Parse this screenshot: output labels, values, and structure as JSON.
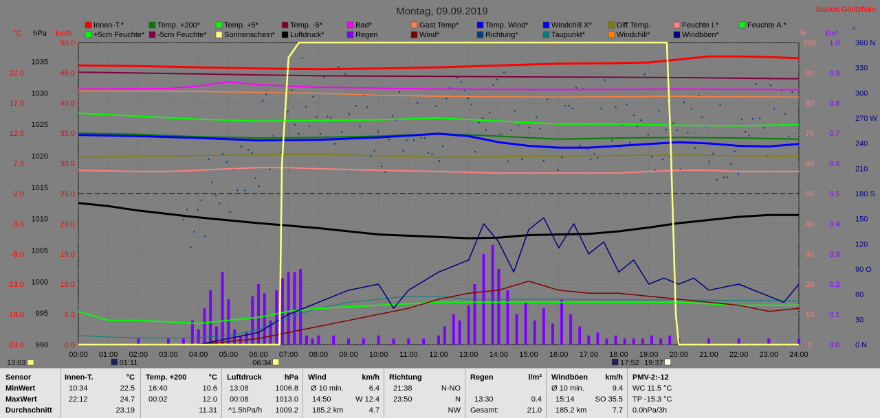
{
  "title": "Montag, 09.09.2019",
  "station": "Station Göritzhain",
  "colors": {
    "background": "#808080",
    "innen_t": "#ff0000",
    "temp_200": "#008000",
    "temp_5": "#00ff00",
    "temp_m5": "#800040",
    "bad": "#ff00ff",
    "gast_temp": "#ff8040",
    "temp_wind": "#0000ff",
    "windchill_x": "#0000ff",
    "diff_temp": "#808000",
    "feuchte_i": "#ff8080",
    "feuchte_a": "#00ff00",
    "feuchte_5cm": "#00ff00",
    "feuchte_m5cm": "#800040",
    "sonnenschein": "#ffff80",
    "luftdruck": "#000000",
    "regen": "#8000ff",
    "wind": "#800000",
    "richtung": "#004080",
    "taupunkt": "#008080",
    "windchill": "#ff8000",
    "windboeen": "#000080"
  },
  "legend": [
    [
      {
        "label": "Innen-T.*",
        "color": "#ff0000"
      },
      {
        "label": "Temp. +200*",
        "color": "#008000"
      },
      {
        "label": "Temp. +5*",
        "color": "#00ff00"
      },
      {
        "label": "Temp. -5*",
        "color": "#800040"
      },
      {
        "label": "Bad*",
        "color": "#ff00ff"
      },
      {
        "label": "Gast Temp*",
        "color": "#ff8040"
      },
      {
        "label": "Temp. Wind*",
        "color": "#0000ff"
      },
      {
        "label": "Windchill X*",
        "color": "#0000ff"
      },
      {
        "label": "Diff Temp.",
        "color": "#808000"
      },
      {
        "label": "Feuchte I.*",
        "color": "#ff8080"
      },
      {
        "label": "Feuchte A.*",
        "color": "#00ff00"
      }
    ],
    [
      {
        "label": "+5cm Feuchte*",
        "color": "#00ff00"
      },
      {
        "label": "-5cm Feuchte*",
        "color": "#800040"
      },
      {
        "label": "Sonnenschein*",
        "color": "#ffff80"
      },
      {
        "label": "Luftdruck*",
        "color": "#000000"
      },
      {
        "label": "Regen",
        "color": "#8000ff"
      },
      {
        "label": "Wind*",
        "color": "#800000"
      },
      {
        "label": "Richtung*",
        "color": "#004080"
      },
      {
        "label": "Taupunkt*",
        "color": "#008080"
      },
      {
        "label": "Windchill*",
        "color": "#ff8000"
      },
      {
        "label": "Windböen*",
        "color": "#000080"
      }
    ]
  ],
  "axis_headers": {
    "celsius": "°C",
    "hpa": "hPa",
    "kmh": "km/h",
    "percent": "%",
    "rain": "l/m²",
    "deg": "°"
  },
  "chart_data": {
    "type": "line",
    "title": "Montag, 09.09.2019",
    "x_ticks": [
      "00:00",
      "01:00",
      "02:00",
      "03:00",
      "04:00",
      "05:00",
      "06:00",
      "07:00",
      "08:00",
      "09:00",
      "10:00",
      "11:00",
      "12:00",
      "13:00",
      "14:00",
      "15:00",
      "16:00",
      "17:00",
      "18:00",
      "19:00",
      "20:00",
      "21:00",
      "22:00",
      "23:00",
      "24:00"
    ],
    "x_range_hours": [
      0,
      24
    ],
    "grid": true,
    "legend_position": "top",
    "axes": {
      "temperature_c": {
        "ticks": [
          "22.0",
          "17.0",
          "12.0",
          "7.0",
          "2.0",
          "-3.0",
          "-8.0",
          "-13.0",
          "-18.0",
          "-23.0"
        ],
        "range": [
          -23,
          27
        ]
      },
      "pressure_hpa": {
        "ticks": [
          "1035",
          "1030",
          "1025",
          "1020",
          "1015",
          "1010",
          "1005",
          "1000",
          "995",
          "990"
        ],
        "range": [
          990,
          1038
        ]
      },
      "wind_kmh": {
        "ticks": [
          "50.0",
          "45.0",
          "40.0",
          "35.0",
          "30.0",
          "25.0",
          "20.0",
          "15.0",
          "10.0",
          "5.0",
          "0.0"
        ],
        "range": [
          0,
          50
        ]
      },
      "humidity_pct": {
        "ticks": [
          "100",
          "90",
          "80",
          "70",
          "60",
          "50",
          "40",
          "30",
          "20",
          "10",
          "0"
        ],
        "range": [
          0,
          100
        ]
      },
      "rain_lm2": {
        "ticks": [
          "1.0",
          "0.9",
          "0.8",
          "0.7",
          "0.6",
          "0.5",
          "0.4",
          "0.3",
          "0.2",
          "0.1",
          "0.0"
        ],
        "range": [
          0,
          1.0
        ]
      },
      "direction_deg": {
        "ticks": [
          "360 N",
          "330",
          "300",
          "270 W",
          "240",
          "210",
          "180 S",
          "150",
          "120",
          "90 O",
          "60",
          "30",
          "0 N"
        ],
        "range": [
          0,
          360
        ]
      }
    },
    "series": [
      {
        "name": "Innen-T.*",
        "axis": "temperature_c",
        "x": [
          0,
          2,
          4,
          6,
          8,
          10,
          12,
          14,
          16,
          18,
          19,
          20,
          21,
          22,
          23,
          24
        ],
        "y": [
          23.2,
          23.1,
          22.9,
          22.7,
          22.6,
          22.7,
          22.9,
          23.2,
          23.5,
          23.6,
          23.7,
          24.2,
          24.7,
          24.7,
          24.6,
          24.4
        ]
      },
      {
        "name": "Temp. +200*",
        "axis": "temperature_c",
        "x": [
          0,
          2,
          4,
          6,
          8,
          10,
          12,
          14,
          16,
          18,
          20,
          22,
          24
        ],
        "y": [
          12.0,
          11.8,
          11.4,
          11.2,
          11.3,
          11.5,
          11.9,
          11.5,
          11.0,
          11.2,
          11.3,
          11.2,
          11.0
        ]
      },
      {
        "name": "Temp. +5*",
        "axis": "temperature_c",
        "x": [
          0,
          2,
          4,
          6,
          8,
          10,
          12,
          14,
          16,
          18,
          20,
          22,
          24
        ],
        "y": [
          15.3,
          14.8,
          14.3,
          14.0,
          14.1,
          14.2,
          14.5,
          14.0,
          13.5,
          13.5,
          13.3,
          13.2,
          13.4
        ]
      },
      {
        "name": "Temp. -5*",
        "axis": "temperature_c",
        "x": [
          0,
          4,
          8,
          12,
          16,
          20,
          24
        ],
        "y": [
          22.1,
          21.8,
          21.5,
          21.4,
          21.3,
          21.2,
          21.0
        ]
      },
      {
        "name": "Bad*",
        "axis": "temperature_c",
        "x": [
          0,
          3,
          4,
          5,
          6,
          8,
          12,
          16,
          20,
          24
        ],
        "y": [
          19.3,
          19.4,
          19.8,
          20.5,
          20.0,
          19.6,
          19.3,
          19.2,
          19.3,
          19.2
        ]
      },
      {
        "name": "Gast Temp*",
        "axis": "temperature_c",
        "x": [
          0,
          4,
          8,
          10,
          12,
          16,
          20,
          24
        ],
        "y": [
          19.0,
          18.9,
          18.6,
          18.3,
          18.1,
          18.0,
          18.1,
          18.0
        ]
      },
      {
        "name": "Temp. Wind*",
        "axis": "temperature_c",
        "x": [
          0,
          2,
          4,
          6,
          8,
          10,
          12,
          13,
          14,
          15,
          16,
          17,
          18,
          19,
          20,
          21,
          22,
          23,
          24
        ],
        "y": [
          11.7,
          11.5,
          11.2,
          10.8,
          10.9,
          11.3,
          11.9,
          11.5,
          10.5,
          9.9,
          9.6,
          9.6,
          9.9,
          10.2,
          10.5,
          10.3,
          9.9,
          9.8,
          10.2
        ]
      },
      {
        "name": "Diff Temp.",
        "axis": "temperature_c",
        "x": [
          0,
          4,
          8,
          12,
          16,
          20,
          24
        ],
        "y": [
          8.0,
          8.3,
          8.5,
          8.0,
          8.2,
          8.4,
          8.1
        ]
      },
      {
        "name": "Feuchte I.*",
        "axis": "humidity_pct",
        "x": [
          0,
          2,
          3,
          4,
          5,
          6,
          7,
          8,
          10,
          12,
          14,
          16,
          18,
          19,
          20,
          21,
          22,
          24
        ],
        "y": [
          57.7,
          57.3,
          57.3,
          57.7,
          58.2,
          58.6,
          58.6,
          58.2,
          57.7,
          57.3,
          56.8,
          56.8,
          56.8,
          57.3,
          57.7,
          57.7,
          57.3,
          57.3
        ]
      },
      {
        "name": "+5cm Feuchte*",
        "axis": "humidity_pct",
        "x": [
          0,
          1,
          2,
          4,
          5,
          6,
          7,
          8,
          10,
          12,
          14,
          16,
          18,
          20,
          22,
          24
        ],
        "y": [
          11,
          8,
          8,
          7,
          8,
          9,
          11,
          12,
          13,
          14,
          14,
          14,
          14,
          14,
          13,
          13
        ]
      },
      {
        "name": "Sonnenschein*",
        "axis": "humidity_pct",
        "x": [
          0,
          6.7,
          6.78,
          7.0,
          7.35,
          14,
          19.6,
          19.72,
          19.9,
          20.0,
          24
        ],
        "y": [
          0,
          0,
          60,
          95,
          100,
          100,
          100,
          70,
          10,
          0,
          0
        ]
      },
      {
        "name": "Luftdruck*",
        "axis": "pressure_hpa",
        "x": [
          0,
          1,
          2,
          4,
          6,
          8,
          10,
          12,
          13,
          14,
          15,
          16,
          17,
          18,
          19,
          20,
          21,
          22,
          23,
          24
        ],
        "y": [
          1012.5,
          1012.0,
          1011.3,
          1010.2,
          1009.3,
          1008.5,
          1007.5,
          1007.1,
          1006.9,
          1007.0,
          1007.4,
          1007.5,
          1007.6,
          1008.0,
          1008.6,
          1009.3,
          1009.8,
          1010.3,
          1010.6,
          1010.6
        ]
      },
      {
        "name": "Regen",
        "axis": "rain_lm2",
        "x": [
          2,
          3,
          3.5,
          3.8,
          4,
          4.2,
          4.4,
          4.6,
          4.8,
          5,
          5.2,
          5.4,
          5.6,
          5.8,
          6,
          6.2,
          6.4,
          6.6,
          6.8,
          7,
          7.2,
          7.4,
          7.6,
          7.8,
          8,
          8.5,
          9,
          9.5,
          10,
          10.5,
          11,
          11.5,
          12,
          12.2,
          12.5,
          12.7,
          13,
          13.2,
          13.5,
          13.8,
          14,
          14.3,
          14.6,
          14.9,
          15.2,
          15.5,
          15.8,
          16.1,
          16.4,
          16.7,
          17,
          17.3,
          17.6,
          17.9,
          18.2,
          18.5,
          18.8,
          19.1,
          19.4,
          19.7,
          20,
          21,
          22,
          23,
          24
        ],
        "y": [
          0.02,
          0.02,
          0.02,
          0.08,
          0.05,
          0.12,
          0.18,
          0.06,
          0.24,
          0.15,
          0.05,
          0.03,
          0.04,
          0.16,
          0.2,
          0.17,
          0.08,
          0.18,
          0.22,
          0.24,
          0.24,
          0.25,
          0.03,
          0.02,
          0.03,
          0.03,
          0.02,
          0.02,
          0.03,
          0.02,
          0.02,
          0.02,
          0.03,
          0.06,
          0.1,
          0.08,
          0.13,
          0.2,
          0.3,
          0.33,
          0.25,
          0.18,
          0.1,
          0.14,
          0.08,
          0.12,
          0.07,
          0.15,
          0.1,
          0.06,
          0.03,
          0.04,
          0.02,
          0.03,
          0.02,
          0.02,
          0.02,
          0.03,
          0.02,
          0.03,
          0.02,
          0.02,
          0.02,
          0.02,
          0.02
        ]
      },
      {
        "name": "Wind*",
        "axis": "wind_kmh",
        "x": [
          0,
          2,
          4,
          6,
          7,
          8,
          9,
          10,
          11,
          12,
          13,
          14,
          15,
          16,
          17,
          18,
          19,
          20,
          21,
          22,
          23,
          24
        ],
        "y": [
          0,
          0,
          0,
          1,
          2,
          3,
          4,
          5,
          6,
          7.5,
          8.5,
          9,
          10.5,
          9,
          8.5,
          8.5,
          8,
          7.5,
          7,
          6.5,
          5.5,
          6
        ]
      },
      {
        "name": "Windböen*",
        "axis": "wind_kmh",
        "x": [
          0,
          2,
          4,
          6,
          7,
          8,
          9,
          10,
          10.5,
          11,
          12,
          13,
          13.5,
          14,
          14.5,
          15,
          15.5,
          16,
          16.5,
          17,
          17.5,
          18,
          18.5,
          19,
          19.5,
          20,
          20.5,
          21,
          22,
          23,
          23.5,
          24
        ],
        "y": [
          0,
          0,
          0,
          2,
          5,
          7,
          9,
          10,
          6,
          9,
          12,
          14,
          20,
          17,
          12,
          19,
          21,
          16,
          20,
          15,
          17,
          12,
          14,
          10,
          11,
          10,
          11,
          9,
          10,
          8,
          7,
          10
        ]
      },
      {
        "name": "Taupunkt*",
        "axis": "humidity_pct",
        "x": [
          0,
          1,
          2,
          3,
          4,
          5,
          6,
          7,
          8,
          9,
          10,
          11,
          12,
          13,
          14,
          16,
          18,
          20,
          24
        ],
        "y": [
          3,
          2.5,
          2.2,
          2.2,
          2.3,
          3,
          5,
          9,
          12,
          14,
          15,
          16,
          16,
          15,
          15,
          15,
          14.8,
          14.8,
          14.5
        ]
      }
    ],
    "markers": {
      "moonrise": "01:11",
      "sunrise": "06:34",
      "moonset": "17:52",
      "sunset": "19:37",
      "left_time": "13:03"
    }
  },
  "stats": {
    "row_labels": {
      "sensor": "Sensor",
      "min": "MinWert",
      "max": "MaxWert",
      "avg": "Durchschnitt"
    },
    "innen": {
      "header": "Innen-T.",
      "unit": "°C",
      "min_time": "10:34",
      "min_val": "22.5",
      "max_time": "22:12",
      "max_val": "24.7",
      "avg": "23.19"
    },
    "temp200": {
      "header": "Temp. +200",
      "unit": "°C",
      "min_time": "16:40",
      "min_val": "10.6",
      "max_time": "00:02",
      "max_val": "12.0",
      "avg": "11.31"
    },
    "luftdruck": {
      "header": "Luftdruck",
      "unit": "hPa",
      "min_time": "13:08",
      "min_val": "1006.8",
      "max_time": "00:08",
      "max_val": "1013.0",
      "trend": "^1.5hPa/h",
      "avg": "1009.2"
    },
    "wind": {
      "header": "Wind",
      "unit": "km/h",
      "min_label": "Ø 10 min.",
      "min_val": "6.4",
      "max_time": "14:50",
      "max_val": "W 12.4",
      "total": "185.2 km",
      "avg": "4.7"
    },
    "richtung": {
      "header": "Richtung",
      "min_time": "21:38",
      "min_val": "N-NO",
      "max_time": "23:50",
      "max_val": "N",
      "avg": "NW"
    },
    "regen": {
      "header": "Regen",
      "unit": "l/m²",
      "max_time": "13:30",
      "max_val": "0.4",
      "total_label": "Gesamt:",
      "total": "21.0"
    },
    "windboeen": {
      "header": "Windböen",
      "unit": "km/h",
      "min_label": "Ø 10 min.",
      "min_val": "9.4",
      "max_time": "15:14",
      "max_val": "SO 35.5",
      "total": "185.2 km",
      "avg": "7.7"
    },
    "pmv": {
      "header": "PMV-2:-12",
      "wc": "WC 11.5 °C",
      "tp": "TP -15.3 °C",
      "trend": "0.0hPa/3h"
    }
  }
}
